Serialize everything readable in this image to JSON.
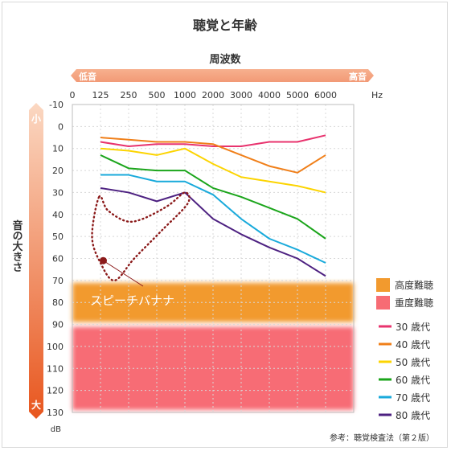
{
  "title": "聴覚と年齢",
  "source_note": "参考：聴覚検査法（第２版）",
  "chart_data": {
    "type": "line",
    "x_axis_title": "周波数",
    "x_low_label": "低音",
    "x_high_label": "高音",
    "x_unit": "Hz",
    "x_zero_label": "0",
    "x_ticks": [
      "125",
      "250",
      "500",
      "1000",
      "2000",
      "3000",
      "4000",
      "5000",
      "6000"
    ],
    "y_axis_title": "音の大きさ",
    "y_top_label": "小",
    "y_bottom_label": "大",
    "y_unit": "dB",
    "y_ticks": [
      -10,
      0,
      10,
      20,
      30,
      40,
      50,
      60,
      70,
      80,
      90,
      100,
      110,
      120,
      130
    ],
    "ylim": [
      -10,
      130
    ],
    "y_inverted": true,
    "grid": true,
    "bands": [
      {
        "name": "高度難聴",
        "from": 70,
        "to": 90,
        "color": "#f29a2e"
      },
      {
        "name": "重度難聴",
        "from": 90,
        "to": 130,
        "color": "#f76c74"
      }
    ],
    "series": [
      {
        "name": "30 歳代",
        "color": "#e8336e",
        "values": [
          7,
          9,
          8,
          8,
          9,
          9,
          7,
          7,
          4
        ]
      },
      {
        "name": "40 歳代",
        "color": "#f07f19",
        "values": [
          5,
          6,
          7,
          7,
          8,
          13,
          18,
          21,
          13
        ]
      },
      {
        "name": "50 歳代",
        "color": "#fcd401",
        "values": [
          10,
          11,
          13,
          10,
          17,
          23,
          25,
          27,
          30
        ]
      },
      {
        "name": "60 歳代",
        "color": "#1ba51b",
        "values": [
          13,
          19,
          20,
          20,
          28,
          32,
          37,
          42,
          51
        ]
      },
      {
        "name": "70 歳代",
        "color": "#19aadb",
        "values": [
          22,
          22,
          25,
          25,
          31,
          42,
          51,
          56,
          62
        ]
      },
      {
        "name": "80 歳代",
        "color": "#4d2181",
        "values": [
          28,
          30,
          34,
          30,
          42,
          49,
          55,
          60,
          68
        ]
      }
    ],
    "annotation": {
      "label": "スピーチバナナ",
      "color": "#8b1a1a",
      "outline": [
        [
          0.95,
          32
        ],
        [
          1.25,
          38
        ],
        [
          1.9,
          43
        ],
        [
          2.5,
          42
        ],
        [
          3.4,
          36
        ],
        [
          4.0,
          30
        ],
        [
          4.1,
          35
        ],
        [
          3.2,
          47
        ],
        [
          2.2,
          60
        ],
        [
          1.5,
          70
        ],
        [
          1.0,
          62
        ],
        [
          0.7,
          50
        ]
      ],
      "marker": [
        1.1,
        61
      ]
    }
  }
}
